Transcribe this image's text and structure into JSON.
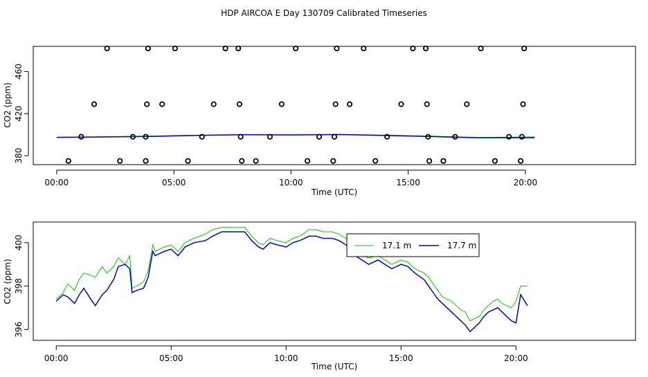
{
  "title": "HDP AIRCOA E  Day 130709  Calibrated Timeseries",
  "colors": {
    "green": "#00cc00",
    "blue": "#0000cc",
    "black": "#000000"
  },
  "chart_data": [
    {
      "type": "scatter",
      "xlabel": "Time (UTC)",
      "ylabel": "CO2 (ppm)",
      "xlim": [
        -1.0,
        24.7
      ],
      "ylim": [
        371.5,
        484.0
      ],
      "x_tick_labels": [
        "00:00",
        "05:00",
        "10:00",
        "15:00",
        "20:00"
      ],
      "x_tick_values": [
        0,
        5,
        10,
        15,
        20
      ],
      "y_tick_labels": [
        "380",
        "420",
        "460"
      ],
      "y_tick_values": [
        380,
        420,
        460
      ],
      "points": [
        [
          0.5,
          375
        ],
        [
          2.7,
          375
        ],
        [
          3.8,
          375
        ],
        [
          5.6,
          375
        ],
        [
          7.9,
          375
        ],
        [
          8.5,
          375
        ],
        [
          10.7,
          375
        ],
        [
          11.8,
          375
        ],
        [
          13.6,
          375
        ],
        [
          15.9,
          375
        ],
        [
          16.5,
          375
        ],
        [
          18.7,
          375
        ],
        [
          19.8,
          375
        ],
        [
          1.05,
          398
        ],
        [
          3.25,
          398
        ],
        [
          3.8,
          398
        ],
        [
          6.2,
          398
        ],
        [
          7.85,
          398
        ],
        [
          9.1,
          398
        ],
        [
          11.2,
          398
        ],
        [
          11.85,
          398
        ],
        [
          14.1,
          398
        ],
        [
          15.85,
          398
        ],
        [
          17.0,
          398
        ],
        [
          19.3,
          398
        ],
        [
          19.85,
          398
        ],
        [
          1.6,
          429
        ],
        [
          3.85,
          429
        ],
        [
          4.5,
          429
        ],
        [
          6.7,
          429
        ],
        [
          7.8,
          429
        ],
        [
          9.6,
          429
        ],
        [
          11.9,
          429
        ],
        [
          12.5,
          429
        ],
        [
          14.7,
          429
        ],
        [
          15.8,
          429
        ],
        [
          17.5,
          429
        ],
        [
          19.9,
          429
        ],
        [
          2.15,
          482
        ],
        [
          3.9,
          482
        ],
        [
          5.05,
          482
        ],
        [
          7.2,
          482
        ],
        [
          7.75,
          482
        ],
        [
          10.2,
          482
        ],
        [
          11.95,
          482
        ],
        [
          13.1,
          482
        ],
        [
          15.2,
          482
        ],
        [
          15.75,
          482
        ],
        [
          18.1,
          482
        ],
        [
          19.95,
          482
        ]
      ],
      "series": [
        {
          "name": "17.1 m",
          "x": [
            0,
            2,
            4,
            6,
            8,
            10,
            12,
            14,
            16,
            18,
            20.4
          ],
          "values": [
            397.6,
            398.1,
            398.6,
            399.5,
            400.2,
            399.9,
            400.4,
            399.5,
            398.6,
            397.4,
            397.9
          ]
        },
        {
          "name": "17.7 m",
          "x": [
            0,
            2,
            4,
            6,
            8,
            10,
            12,
            14,
            16,
            18,
            20.4
          ],
          "values": [
            397.4,
            397.8,
            398.3,
            399.3,
            400.0,
            399.7,
            400.1,
            399.2,
            398.2,
            397.0,
            397.1
          ]
        }
      ]
    },
    {
      "type": "line",
      "xlabel": "Time (UTC)",
      "ylabel": "CO2 (ppm)",
      "xlim": [
        -1.0,
        25.2
      ],
      "ylim": [
        395.5,
        400.95
      ],
      "x_tick_labels": [
        "00:00",
        "05:00",
        "10:00",
        "15:00",
        "20:00"
      ],
      "x_tick_values": [
        0,
        5,
        10,
        15,
        20
      ],
      "y_tick_labels": [
        "396",
        "398",
        "400"
      ],
      "y_tick_values": [
        396,
        398,
        400
      ],
      "legend": {
        "position": "top-center",
        "entries": [
          "17.1 m",
          "17.7 m"
        ]
      },
      "series": [
        {
          "name": "17.1 m",
          "x": [
            0,
            0.3,
            0.5,
            0.8,
            1.0,
            1.2,
            1.5,
            1.7,
            2.0,
            2.2,
            2.5,
            2.7,
            3.0,
            3.2,
            3.3,
            3.5,
            3.8,
            4.0,
            4.2,
            4.3,
            4.5,
            4.7,
            5.0,
            5.3,
            5.6,
            6.0,
            6.5,
            6.8,
            7.2,
            7.6,
            8.0,
            8.2,
            8.5,
            8.8,
            9.0,
            9.3,
            9.6,
            10.0,
            10.3,
            10.6,
            11.0,
            11.3,
            11.6,
            12.0,
            12.3,
            12.6,
            13.0,
            13.3,
            13.6,
            14.0,
            14.3,
            14.6,
            15.0,
            15.3,
            15.6,
            16.0,
            16.2,
            16.4,
            16.6,
            16.8,
            17.0,
            17.2,
            17.4,
            17.6,
            17.8,
            18.0,
            18.2,
            18.4,
            18.6,
            18.8,
            19.0,
            19.2,
            19.4,
            19.6,
            19.8,
            20.0,
            20.2,
            20.5
          ],
          "values": [
            397.4,
            397.7,
            398.1,
            397.8,
            398.3,
            398.6,
            398.5,
            398.4,
            398.9,
            398.6,
            398.9,
            399.3,
            399.0,
            399.4,
            397.9,
            398.0,
            398.2,
            398.7,
            399.9,
            399.6,
            399.7,
            399.8,
            399.9,
            399.6,
            400.0,
            400.2,
            400.4,
            400.6,
            400.7,
            400.7,
            400.7,
            400.7,
            400.3,
            400.0,
            399.9,
            400.2,
            400.1,
            400.0,
            400.2,
            400.3,
            400.6,
            400.6,
            400.5,
            400.5,
            400.4,
            400.2,
            399.6,
            399.4,
            399.3,
            399.4,
            399.2,
            399.0,
            399.2,
            399.1,
            398.8,
            398.6,
            398.4,
            398.1,
            397.8,
            397.5,
            397.4,
            397.3,
            397.1,
            396.9,
            396.8,
            396.4,
            396.5,
            396.6,
            396.9,
            397.1,
            397.3,
            397.4,
            397.2,
            397.1,
            397.0,
            397.3,
            398.0,
            398.0
          ]
        },
        {
          "name": "17.7 m",
          "x": [
            0,
            0.3,
            0.5,
            0.8,
            1.0,
            1.2,
            1.5,
            1.7,
            2.0,
            2.2,
            2.5,
            2.7,
            3.0,
            3.2,
            3.3,
            3.5,
            3.8,
            4.0,
            4.2,
            4.3,
            4.5,
            4.7,
            5.0,
            5.3,
            5.6,
            6.0,
            6.5,
            6.8,
            7.2,
            7.6,
            8.0,
            8.2,
            8.5,
            8.8,
            9.0,
            9.3,
            9.6,
            10.0,
            10.3,
            10.6,
            11.0,
            11.3,
            11.6,
            12.0,
            12.3,
            12.6,
            13.0,
            13.3,
            13.6,
            14.0,
            14.3,
            14.6,
            15.0,
            15.3,
            15.6,
            16.0,
            16.2,
            16.4,
            16.6,
            16.8,
            17.0,
            17.2,
            17.4,
            17.6,
            17.8,
            18.0,
            18.2,
            18.4,
            18.6,
            18.8,
            19.0,
            19.2,
            19.4,
            19.6,
            19.8,
            20.0,
            20.2,
            20.5
          ],
          "values": [
            397.3,
            397.6,
            397.5,
            397.2,
            397.6,
            397.9,
            397.4,
            397.1,
            397.6,
            397.8,
            398.3,
            398.9,
            399.0,
            398.8,
            397.7,
            397.8,
            397.9,
            398.4,
            399.6,
            399.4,
            399.5,
            399.6,
            399.7,
            399.4,
            399.8,
            400.0,
            400.1,
            400.3,
            400.5,
            400.5,
            400.5,
            400.5,
            400.1,
            399.8,
            399.7,
            400.0,
            399.9,
            399.8,
            400.0,
            400.1,
            400.3,
            400.3,
            400.2,
            400.2,
            400.1,
            399.9,
            399.4,
            399.2,
            399.0,
            399.2,
            399.0,
            398.8,
            399.0,
            398.9,
            398.6,
            398.3,
            398.0,
            397.7,
            397.4,
            397.2,
            397.0,
            396.8,
            396.6,
            396.4,
            396.2,
            395.9,
            396.1,
            396.3,
            396.6,
            396.8,
            396.9,
            397.0,
            396.8,
            396.6,
            396.4,
            396.3,
            397.6,
            397.1
          ]
        }
      ]
    }
  ]
}
